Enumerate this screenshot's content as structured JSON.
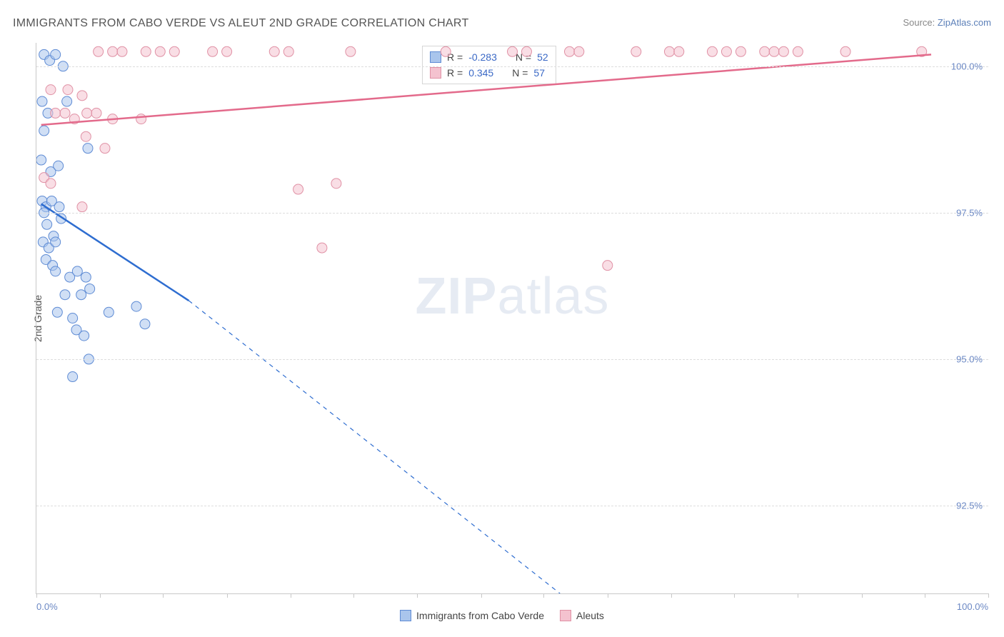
{
  "header": {
    "title": "IMMIGRANTS FROM CABO VERDE VS ALEUT 2ND GRADE CORRELATION CHART",
    "source_prefix": "Source: ",
    "source_link": "ZipAtlas.com"
  },
  "chart": {
    "type": "scatter",
    "ylabel": "2nd Grade",
    "xlim": [
      0,
      100
    ],
    "ylim": [
      91.0,
      100.4
    ],
    "yticks": [
      {
        "v": 92.5,
        "label": "92.5%"
      },
      {
        "v": 95.0,
        "label": "95.0%"
      },
      {
        "v": 97.5,
        "label": "97.5%"
      },
      {
        "v": 100.0,
        "label": "100.0%"
      }
    ],
    "xticks_minor": [
      0,
      6.7,
      13.3,
      20,
      26.7,
      33.3,
      40,
      46.7,
      53.3,
      60,
      66.7,
      73.3,
      80,
      86.7,
      93.3,
      100
    ],
    "xtick_labels": [
      {
        "v": 0,
        "label": "0.0%",
        "align": "left"
      },
      {
        "v": 100,
        "label": "100.0%",
        "align": "right"
      }
    ],
    "background_color": "#ffffff",
    "grid_color": "#dddddd",
    "axis_color": "#c8c8c8",
    "ylabel_fontsize": 14,
    "tick_fontsize": 13,
    "tick_color": "#6b88c4",
    "marker_radius": 7,
    "marker_opacity": 0.55,
    "series": [
      {
        "id": "cabo_verde",
        "name": "Immigrants from Cabo Verde",
        "color_fill": "#a9c5ec",
        "color_stroke": "#5e8bd4",
        "R": "-0.283",
        "N": "52",
        "trend_color": "#2e6dd0",
        "trend_width": 2.5,
        "trend_solid": {
          "x1": 0.5,
          "y1": 97.65,
          "x2": 16,
          "y2": 96.0
        },
        "trend_dash": {
          "x1": 16,
          "y1": 96.0,
          "x2": 55,
          "y2": 91.0
        },
        "points": [
          [
            0.8,
            100.2
          ],
          [
            1.4,
            100.1
          ],
          [
            2.0,
            100.2
          ],
          [
            2.8,
            100.0
          ],
          [
            0.6,
            99.4
          ],
          [
            1.2,
            99.2
          ],
          [
            0.8,
            98.9
          ],
          [
            3.2,
            99.4
          ],
          [
            0.5,
            98.4
          ],
          [
            1.5,
            98.2
          ],
          [
            2.3,
            98.3
          ],
          [
            5.4,
            98.6
          ],
          [
            0.6,
            97.7
          ],
          [
            1.0,
            97.6
          ],
          [
            1.6,
            97.7
          ],
          [
            2.4,
            97.6
          ],
          [
            0.8,
            97.5
          ],
          [
            1.1,
            97.3
          ],
          [
            1.8,
            97.1
          ],
          [
            2.6,
            97.4
          ],
          [
            0.7,
            97.0
          ],
          [
            1.3,
            96.9
          ],
          [
            2.0,
            97.0
          ],
          [
            1.0,
            96.7
          ],
          [
            1.7,
            96.6
          ],
          [
            2.0,
            96.5
          ],
          [
            3.5,
            96.4
          ],
          [
            4.3,
            96.5
          ],
          [
            5.2,
            96.4
          ],
          [
            3.0,
            96.1
          ],
          [
            4.7,
            96.1
          ],
          [
            5.6,
            96.2
          ],
          [
            2.2,
            95.8
          ],
          [
            3.8,
            95.7
          ],
          [
            4.2,
            95.5
          ],
          [
            5.0,
            95.4
          ],
          [
            7.6,
            95.8
          ],
          [
            10.5,
            95.9
          ],
          [
            11.4,
            95.6
          ],
          [
            5.5,
            95.0
          ],
          [
            3.8,
            94.7
          ]
        ]
      },
      {
        "id": "aleuts",
        "name": "Aleuts",
        "color_fill": "#f4c2cf",
        "color_stroke": "#e091a5",
        "R": "0.345",
        "N": "57",
        "trend_color": "#e36a8b",
        "trend_width": 2.5,
        "trend_solid": {
          "x1": 0.5,
          "y1": 99.0,
          "x2": 94,
          "y2": 100.2
        },
        "points": [
          [
            6.5,
            100.25
          ],
          [
            8.0,
            100.25
          ],
          [
            9.0,
            100.25
          ],
          [
            11.5,
            100.25
          ],
          [
            13.0,
            100.25
          ],
          [
            14.5,
            100.25
          ],
          [
            18.5,
            100.25
          ],
          [
            20.0,
            100.25
          ],
          [
            25.0,
            100.25
          ],
          [
            26.5,
            100.25
          ],
          [
            33.0,
            100.25
          ],
          [
            43.0,
            100.25
          ],
          [
            50.0,
            100.25
          ],
          [
            51.5,
            100.25
          ],
          [
            56.0,
            100.25
          ],
          [
            57.0,
            100.25
          ],
          [
            63.0,
            100.25
          ],
          [
            66.5,
            100.25
          ],
          [
            67.5,
            100.25
          ],
          [
            71.0,
            100.25
          ],
          [
            72.5,
            100.25
          ],
          [
            74.0,
            100.25
          ],
          [
            76.5,
            100.25
          ],
          [
            77.5,
            100.25
          ],
          [
            78.5,
            100.25
          ],
          [
            80.0,
            100.25
          ],
          [
            85.0,
            100.25
          ],
          [
            93.0,
            100.25
          ],
          [
            1.5,
            99.6
          ],
          [
            3.3,
            99.6
          ],
          [
            4.8,
            99.5
          ],
          [
            2.0,
            99.2
          ],
          [
            3.0,
            99.2
          ],
          [
            4.0,
            99.1
          ],
          [
            5.3,
            99.2
          ],
          [
            6.3,
            99.2
          ],
          [
            8.0,
            99.1
          ],
          [
            11.0,
            99.1
          ],
          [
            5.2,
            98.8
          ],
          [
            7.2,
            98.6
          ],
          [
            0.8,
            98.1
          ],
          [
            1.5,
            98.0
          ],
          [
            4.8,
            97.6
          ],
          [
            27.5,
            97.9
          ],
          [
            31.5,
            98.0
          ],
          [
            30.0,
            96.9
          ],
          [
            60.0,
            96.6
          ]
        ]
      }
    ],
    "legend_top": {
      "border_color": "#d6d6d6",
      "rows": [
        {
          "swatch_fill": "#a9c5ec",
          "swatch_stroke": "#5e8bd4",
          "r_label": "R =",
          "r_value": "-0.283",
          "n_label": "N =",
          "n_value": "52"
        },
        {
          "swatch_fill": "#f4c2cf",
          "swatch_stroke": "#e091a5",
          "r_label": "R =",
          "r_value": " 0.345",
          "n_label": "N =",
          "n_value": "57"
        }
      ]
    },
    "legend_bottom": [
      {
        "swatch_fill": "#a9c5ec",
        "swatch_stroke": "#5e8bd4",
        "label": "Immigrants from Cabo Verde"
      },
      {
        "swatch_fill": "#f4c2cf",
        "swatch_stroke": "#e091a5",
        "label": "Aleuts"
      }
    ]
  },
  "watermark": {
    "part1": "ZIP",
    "part2": "atlas"
  }
}
